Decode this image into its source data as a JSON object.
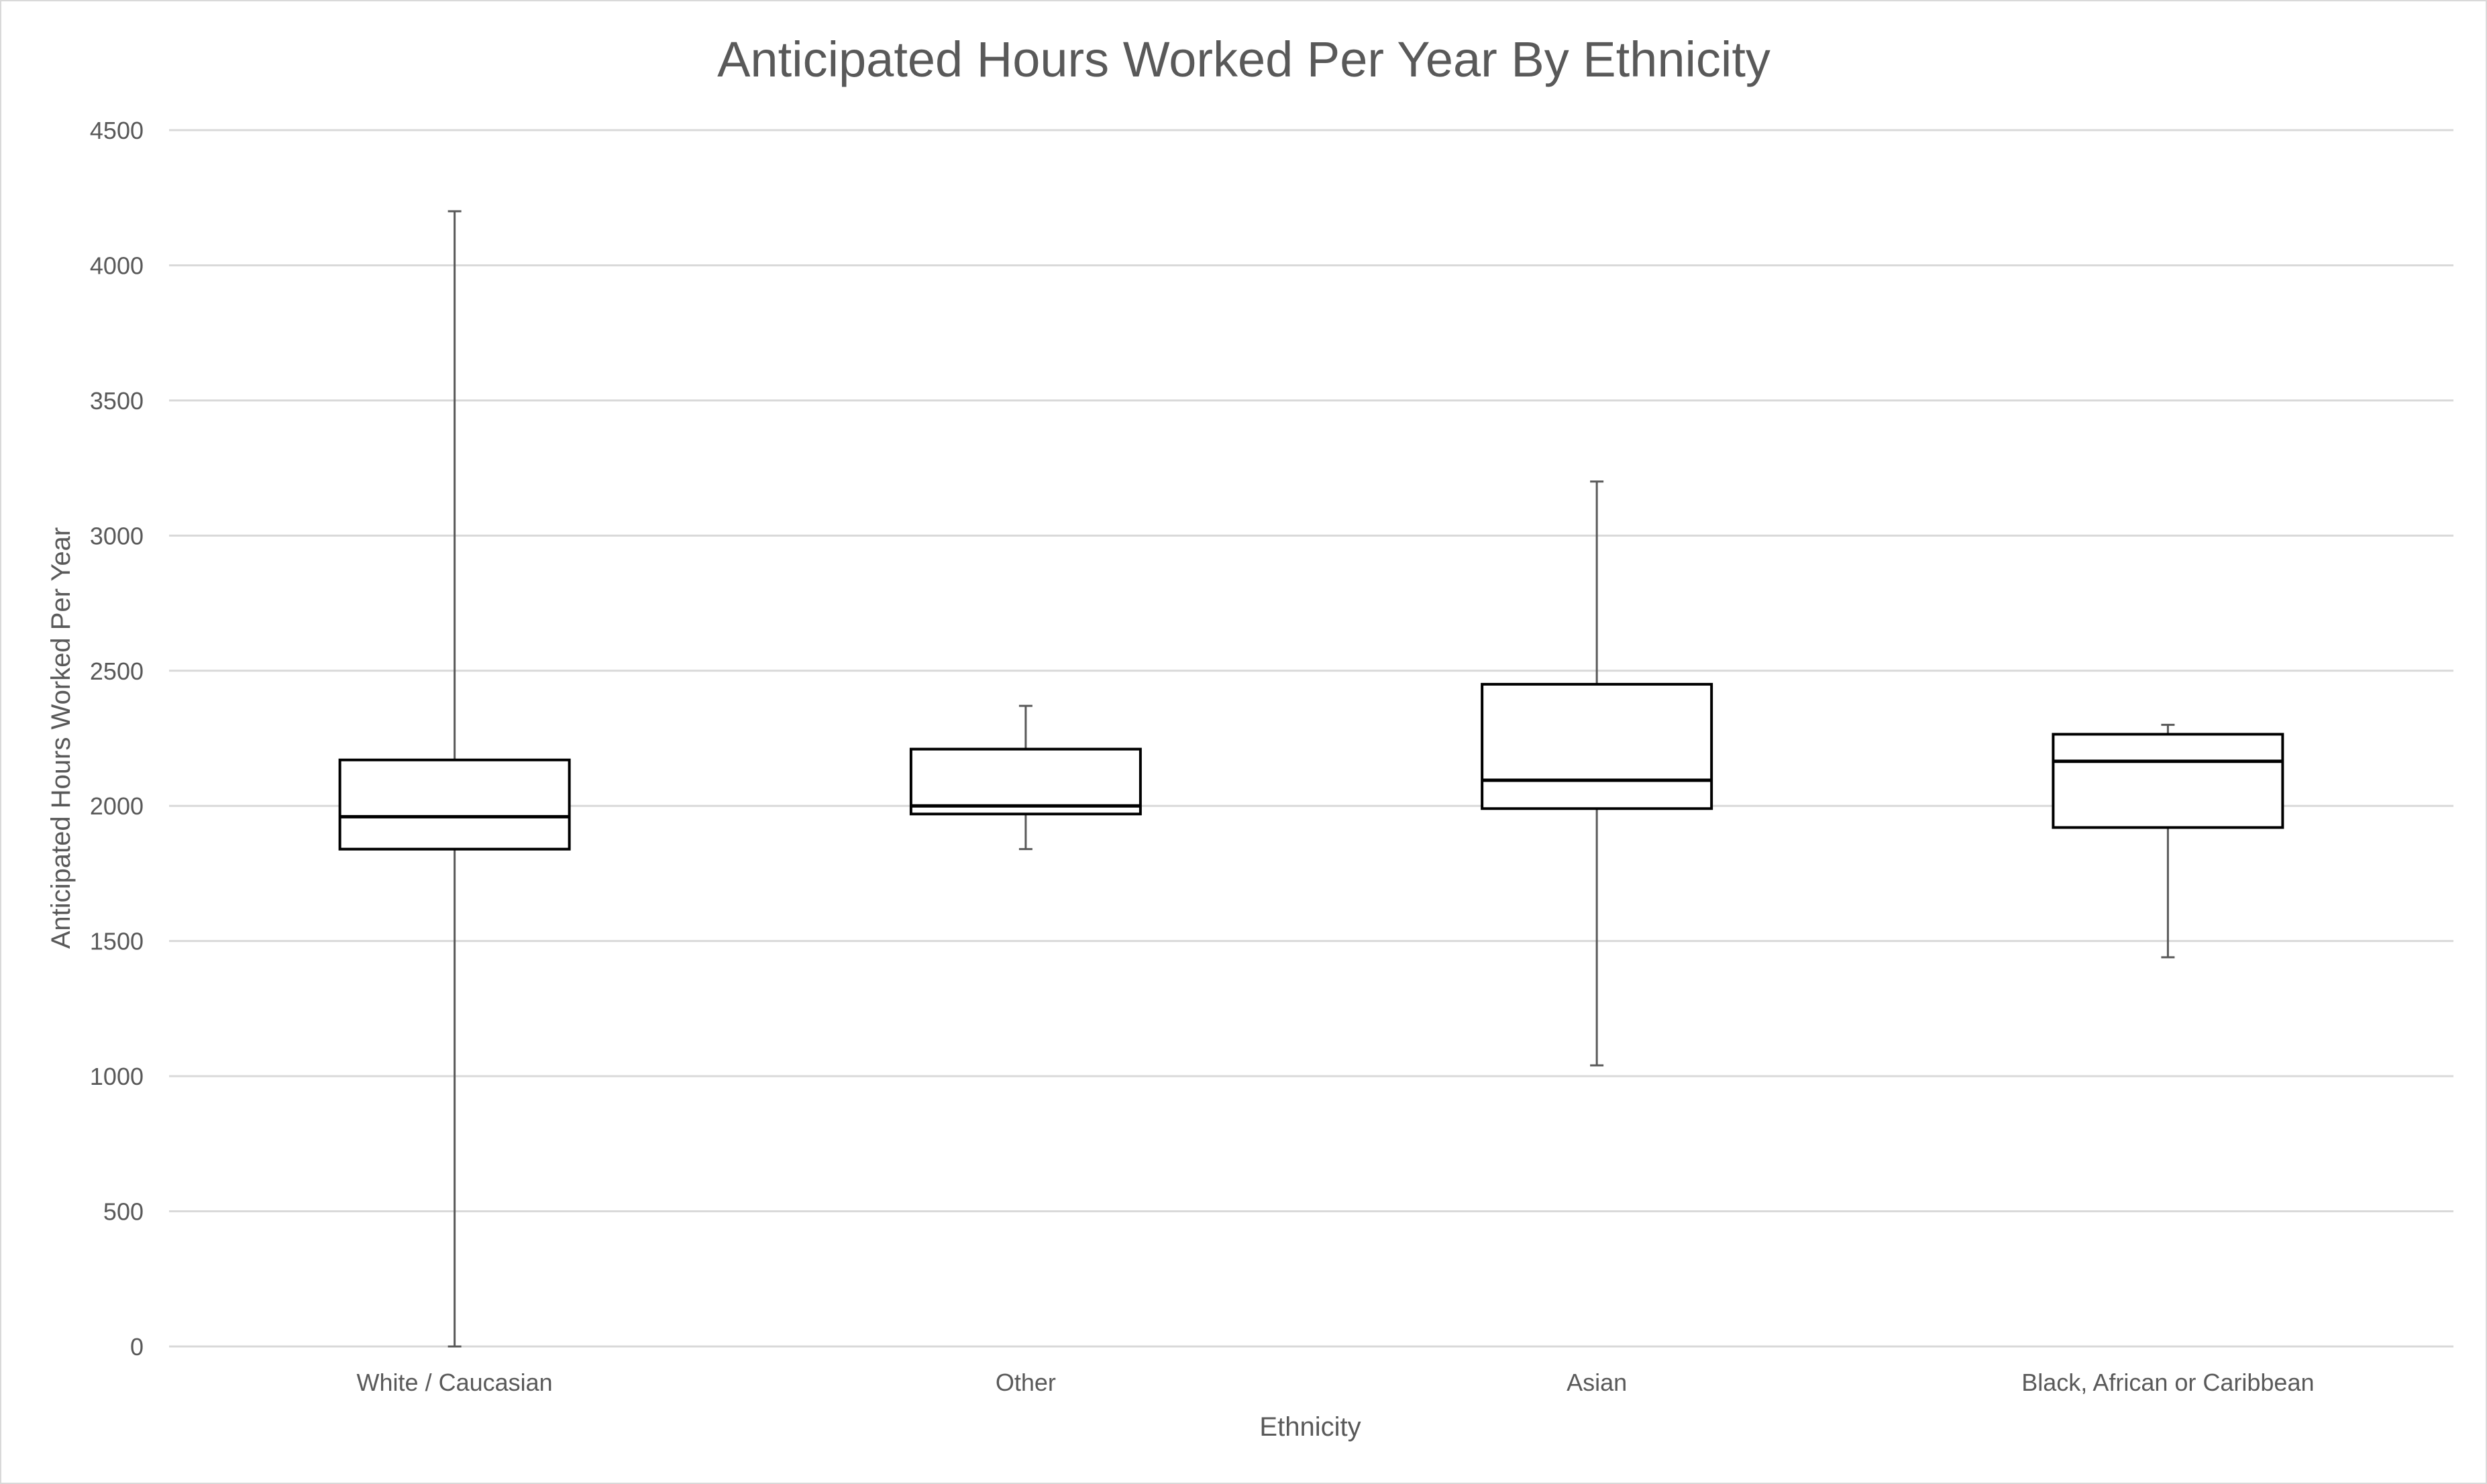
{
  "chart_data": {
    "type": "boxplot",
    "title": "Anticipated Hours Worked Per Year By Ethnicity",
    "xlabel": "Ethnicity",
    "ylabel": "Anticipated Hours Worked Per Year",
    "ylim": [
      0,
      4500
    ],
    "yticks": [
      0,
      500,
      1000,
      1500,
      2000,
      2500,
      3000,
      3500,
      4000,
      4500
    ],
    "grid": true,
    "legend": "none",
    "categories": [
      "White / Caucasian",
      "Other",
      "Asian",
      "Black, African or Caribbean"
    ],
    "boxes": [
      {
        "category": "White / Caucasian",
        "min": 0,
        "q1": 1840,
        "median": 1960,
        "q3": 2170,
        "max": 4200
      },
      {
        "category": "Other",
        "min": 1840,
        "q1": 1970,
        "median": 2000,
        "q3": 2210,
        "max": 2370
      },
      {
        "category": "Asian",
        "min": 1040,
        "q1": 1990,
        "median": 2095,
        "q3": 2450,
        "max": 3200
      },
      {
        "category": "Black, African or Caribbean",
        "min": 1440,
        "q1": 1920,
        "median": 2165,
        "q3": 2265,
        "max": 2300
      }
    ]
  }
}
